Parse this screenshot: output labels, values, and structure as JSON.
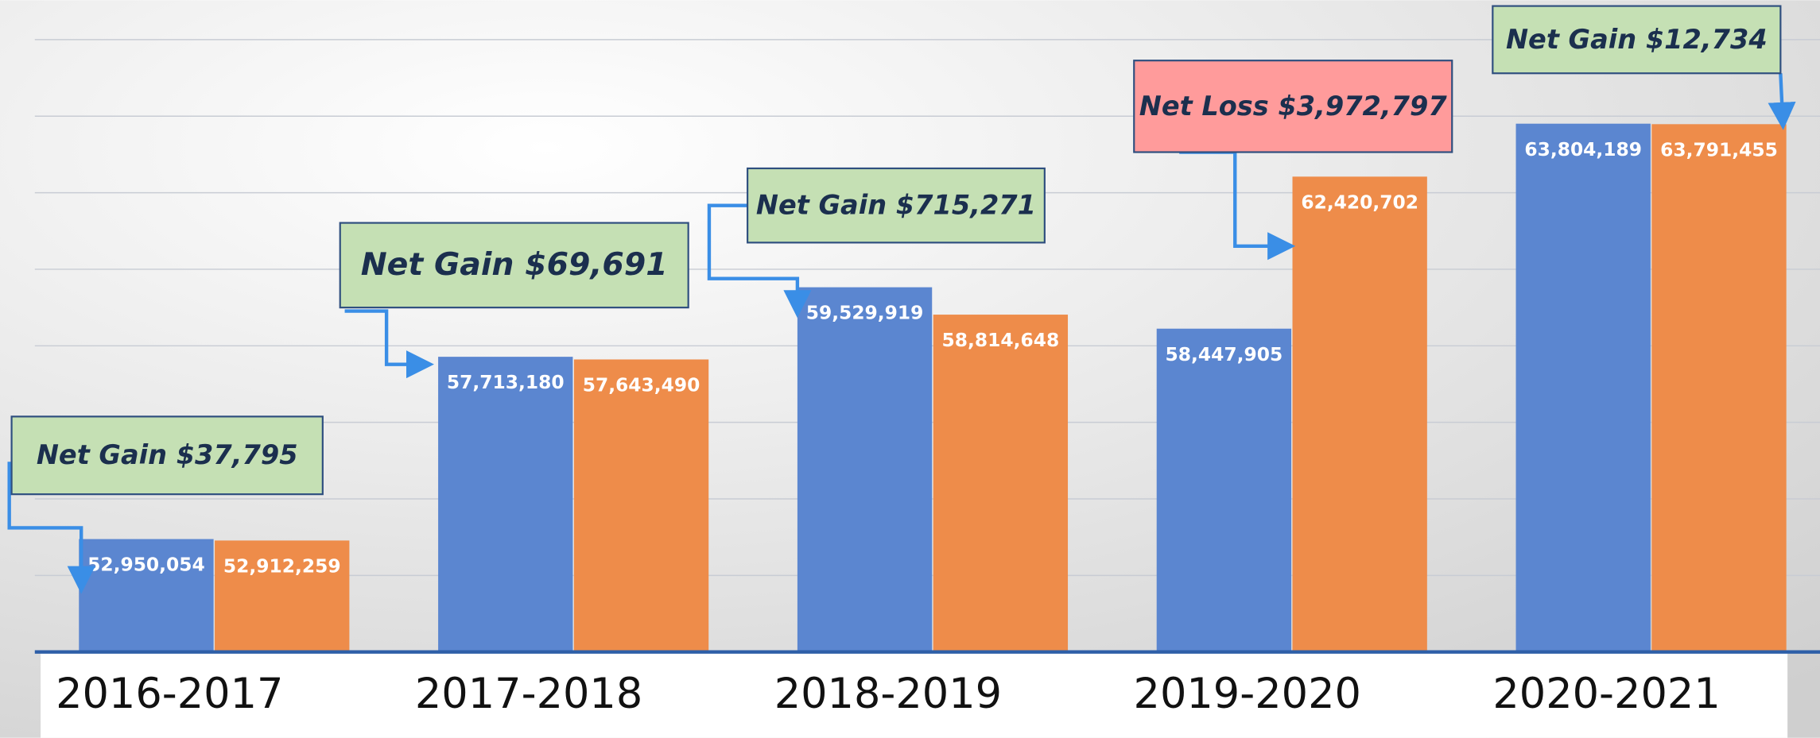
{
  "chart_data": {
    "type": "bar",
    "categories": [
      "2016-2017",
      "2017-2018",
      "2018-2019",
      "2019-2020",
      "2020-2021"
    ],
    "series": [
      {
        "color": "#5b86d0",
        "values": [
          52950054,
          57713180,
          59529919,
          58447905,
          63804189
        ],
        "value_labels": [
          "52,950,054",
          "57,713,180",
          "59,529,919",
          "58,447,905",
          "63,804,189"
        ]
      },
      {
        "color": "#ee8c4a",
        "values": [
          52912259,
          57643490,
          58814648,
          62420702,
          63791455
        ],
        "value_labels": [
          "52,912,259",
          "57,643,490",
          "58,814,648",
          "62,420,702",
          "63,791,455"
        ]
      }
    ],
    "ylim": [
      50000000,
      66000000
    ],
    "yticks": [
      50000000,
      52000000,
      54000000,
      56000000,
      58000000,
      60000000,
      62000000,
      64000000,
      66000000
    ],
    "grid": true,
    "annotations": [
      {
        "text": "Net Gain $37,795",
        "color": "#c5e0b4"
      },
      {
        "text": "Net Gain $69,691",
        "color": "#c5e0b4"
      },
      {
        "text": "Net Gain $715,271",
        "color": "#c5e0b4"
      },
      {
        "text": "Net Loss $3,972,797",
        "color": "#ff9b9b"
      },
      {
        "text": "Net Gain $12,734",
        "color": "#c5e0b4"
      }
    ]
  }
}
